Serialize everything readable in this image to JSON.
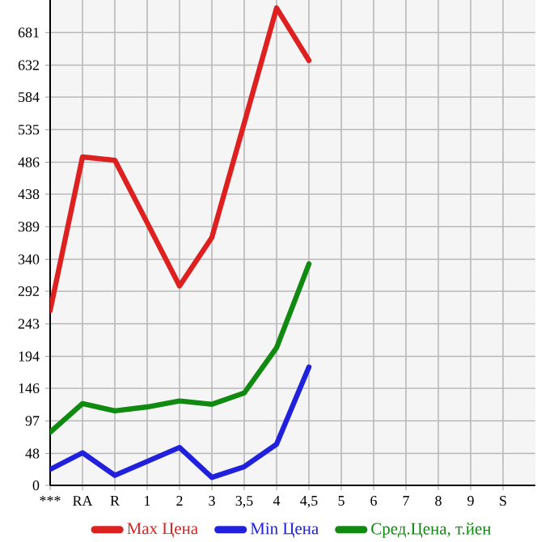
{
  "chart_data": {
    "type": "line",
    "categories": [
      "***",
      "RA",
      "R",
      "1",
      "2",
      "3",
      "3,5",
      "4",
      "4,5",
      "5",
      "6",
      "7",
      "8",
      "9",
      "S"
    ],
    "series": [
      {
        "name": "Max Цена",
        "color": "#dd2020",
        "values": [
          263,
          494,
          489,
          395,
          300,
          373,
          545,
          718,
          639,
          null,
          null,
          null,
          null,
          null,
          null
        ]
      },
      {
        "name": "Min Цена",
        "color": "#2020dd",
        "values": [
          24,
          49,
          15,
          36,
          57,
          12,
          28,
          62,
          178,
          null,
          null,
          null,
          null,
          null,
          null
        ]
      },
      {
        "name": "Сред.Цена, т.йен",
        "color": "#108a10",
        "values": [
          80,
          123,
          112,
          118,
          127,
          122,
          139,
          207,
          333,
          null,
          null,
          null,
          null,
          null,
          null
        ]
      }
    ],
    "ylim": [
      0,
      730
    ],
    "yticks": [
      0,
      48,
      97,
      146,
      194,
      243,
      292,
      340,
      389,
      438,
      486,
      535,
      584,
      632,
      681
    ],
    "grid": true,
    "legend": "bottom"
  }
}
